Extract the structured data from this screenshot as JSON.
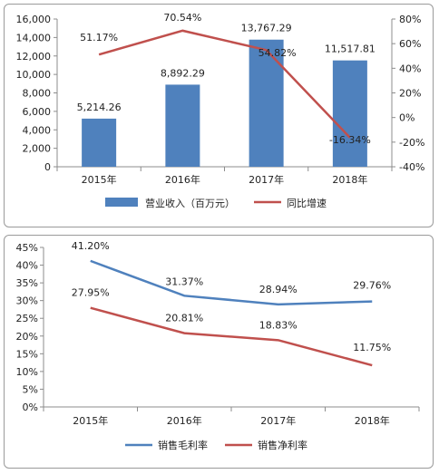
{
  "chart_data": [
    {
      "type": "bar",
      "categories": [
        "2015年",
        "2016年",
        "2017年",
        "2018年"
      ],
      "series": [
        {
          "name": "营业收入（百万元）",
          "type": "bar",
          "axis": "left",
          "color": "#4f81bd",
          "values": [
            5214.26,
            8892.29,
            13767.29,
            11517.81
          ],
          "labels": [
            "5,214.26",
            "8,892.29",
            "13,767.29",
            "11,517.81"
          ]
        },
        {
          "name": "同比增速",
          "type": "line",
          "axis": "right",
          "color": "#c0504d",
          "values": [
            51.17,
            70.54,
            54.82,
            -16.34
          ],
          "labels": [
            "51.17%",
            "70.54%",
            "54.82%",
            "-16.34%"
          ]
        }
      ],
      "left_axis": {
        "ylim": [
          0,
          16000
        ],
        "ticks": [
          "0",
          "2,000",
          "4,000",
          "6,000",
          "8,000",
          "10,000",
          "12,000",
          "14,000",
          "16,000"
        ]
      },
      "right_axis": {
        "ylim": [
          -40,
          80
        ],
        "ticks": [
          "-40%",
          "-20%",
          "0%",
          "20%",
          "40%",
          "60%",
          "80%"
        ]
      },
      "grid": false,
      "legend_position": "bottom"
    },
    {
      "type": "line",
      "categories": [
        "2015年",
        "2016年",
        "2017年",
        "2018年"
      ],
      "series": [
        {
          "name": "销售毛利率",
          "color": "#4f81bd",
          "values": [
            41.2,
            31.37,
            28.94,
            29.76
          ],
          "labels": [
            "41.20%",
            "31.37%",
            "28.94%",
            "29.76%"
          ]
        },
        {
          "name": "销售净利率",
          "color": "#c0504d",
          "values": [
            27.95,
            20.81,
            18.83,
            11.75
          ],
          "labels": [
            "27.95%",
            "20.81%",
            "18.83%",
            "11.75%"
          ]
        }
      ],
      "y_axis": {
        "ylim": [
          0,
          45
        ],
        "ticks": [
          "0%",
          "5%",
          "10%",
          "15%",
          "20%",
          "25%",
          "30%",
          "35%",
          "40%",
          "45%"
        ]
      },
      "grid": false,
      "legend_position": "bottom"
    }
  ]
}
